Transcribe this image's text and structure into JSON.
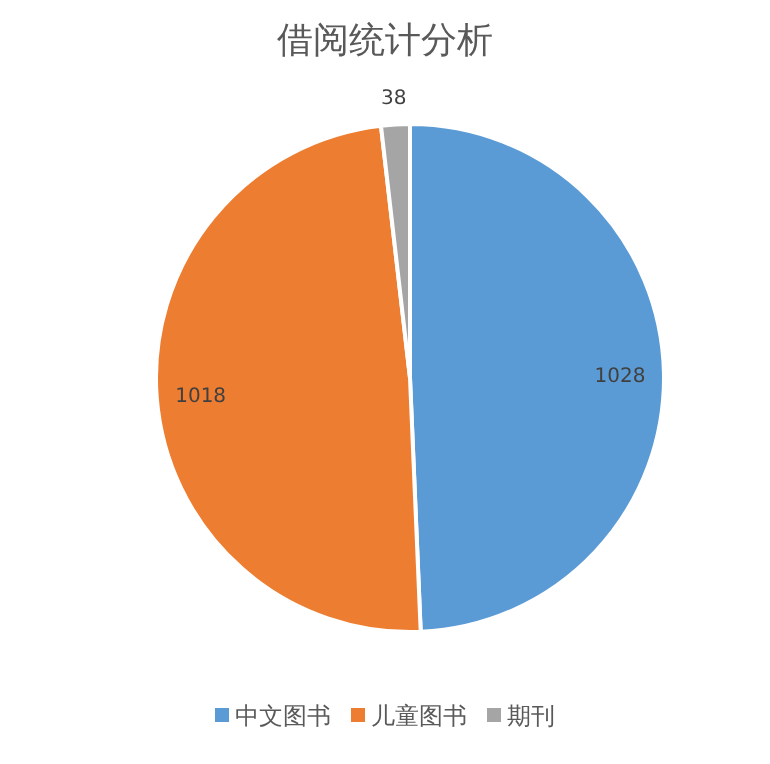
{
  "chart_data": {
    "type": "pie",
    "title": "借阅统计分析",
    "categories": [
      "中文图书",
      "儿童图书",
      "期刊"
    ],
    "values": [
      1028,
      1018,
      38
    ],
    "colors": [
      "#5b9bd5",
      "#ed7d31",
      "#a5a5a5"
    ],
    "data_labels": true,
    "legend": "bottom"
  }
}
